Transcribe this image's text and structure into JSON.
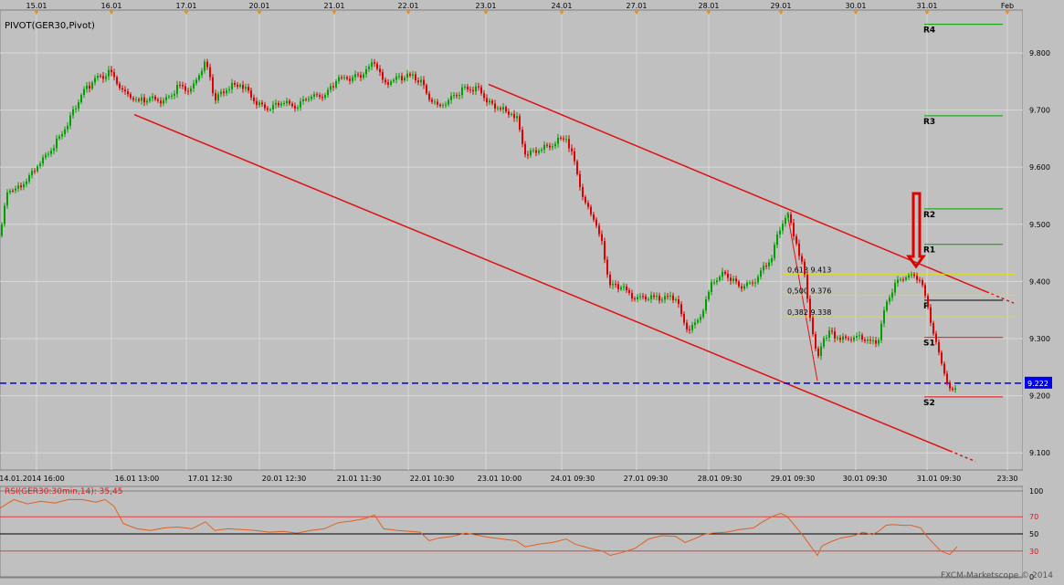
{
  "chart_data": {
    "type": "candlestick",
    "instrument_label": "PIVOT(GER30,Pivot)",
    "top_dates": [
      "15.01",
      "16.01",
      "17.01",
      "20.01",
      "21.01",
      "22.01",
      "23.01",
      "24.01",
      "27.01",
      "28.01",
      "29.01",
      "30.01",
      "31.01",
      "Feb"
    ],
    "bottom_times": [
      "14.01.2014 16:00",
      "16.01 13:00",
      "17.01 12:30",
      "20.01 12:30",
      "21.01 11:30",
      "22.01 10:30",
      "23.01 10:00",
      "24.01 09:30",
      "27.01 09:30",
      "28.01 09:30",
      "29.01 09:30",
      "30.01 09:30",
      "31.01 09:30",
      "23:30"
    ],
    "y_ticks": [
      "9.800",
      "9.700",
      "9.600",
      "9.500",
      "9.400",
      "9.300",
      "9.200",
      "9.100"
    ],
    "ylim": [
      9070,
      9875
    ],
    "price_path": [
      [
        0,
        9480
      ],
      [
        8,
        9560
      ],
      [
        18,
        9560
      ],
      [
        30,
        9580
      ],
      [
        45,
        9610
      ],
      [
        60,
        9640
      ],
      [
        75,
        9680
      ],
      [
        90,
        9730
      ],
      [
        105,
        9755
      ],
      [
        120,
        9765
      ],
      [
        135,
        9730
      ],
      [
        150,
        9715
      ],
      [
        165,
        9720
      ],
      [
        180,
        9715
      ],
      [
        195,
        9740
      ],
      [
        210,
        9735
      ],
      [
        225,
        9785
      ],
      [
        235,
        9720
      ],
      [
        250,
        9740
      ],
      [
        265,
        9745
      ],
      [
        280,
        9715
      ],
      [
        295,
        9700
      ],
      [
        310,
        9715
      ],
      [
        325,
        9705
      ],
      [
        340,
        9725
      ],
      [
        355,
        9725
      ],
      [
        370,
        9755
      ],
      [
        385,
        9755
      ],
      [
        400,
        9765
      ],
      [
        410,
        9785
      ],
      [
        420,
        9745
      ],
      [
        435,
        9755
      ],
      [
        450,
        9760
      ],
      [
        460,
        9750
      ],
      [
        470,
        9720
      ],
      [
        480,
        9705
      ],
      [
        495,
        9720
      ],
      [
        510,
        9740
      ],
      [
        525,
        9735
      ],
      [
        535,
        9715
      ],
      [
        550,
        9700
      ],
      [
        565,
        9690
      ],
      [
        575,
        9625
      ],
      [
        590,
        9630
      ],
      [
        605,
        9640
      ],
      [
        620,
        9655
      ],
      [
        630,
        9600
      ],
      [
        640,
        9540
      ],
      [
        650,
        9510
      ],
      [
        660,
        9460
      ],
      [
        668,
        9390
      ],
      [
        680,
        9390
      ],
      [
        695,
        9370
      ],
      [
        710,
        9370
      ],
      [
        725,
        9370
      ],
      [
        740,
        9370
      ],
      [
        750,
        9320
      ],
      [
        760,
        9320
      ],
      [
        770,
        9350
      ],
      [
        780,
        9400
      ],
      [
        795,
        9415
      ],
      [
        810,
        9390
      ],
      [
        825,
        9400
      ],
      [
        835,
        9420
      ],
      [
        845,
        9445
      ],
      [
        855,
        9500
      ],
      [
        862,
        9520
      ],
      [
        870,
        9480
      ],
      [
        880,
        9420
      ],
      [
        888,
        9330
      ],
      [
        895,
        9260
      ],
      [
        900,
        9300
      ],
      [
        910,
        9310
      ],
      [
        920,
        9300
      ],
      [
        935,
        9300
      ],
      [
        945,
        9300
      ],
      [
        955,
        9290
      ],
      [
        962,
        9300
      ],
      [
        970,
        9360
      ],
      [
        978,
        9390
      ],
      [
        988,
        9405
      ],
      [
        998,
        9410
      ],
      [
        1008,
        9405
      ],
      [
        1015,
        9360
      ],
      [
        1022,
        9310
      ],
      [
        1030,
        9260
      ],
      [
        1040,
        9210
      ],
      [
        1048,
        9210
      ]
    ],
    "channel": {
      "upper": [
        [
          535,
          9745
        ],
        [
          1110,
          9362
        ]
      ],
      "lower": [
        [
          147,
          9692
        ],
        [
          1068,
          9085
        ]
      ]
    },
    "fibonacci": [
      {
        "label": "0,618 9.413",
        "value": 9413
      },
      {
        "label": "0,500 9.376",
        "value": 9376
      },
      {
        "label": "0,382 9.338",
        "value": 9338
      }
    ],
    "pivots": [
      {
        "name": "R4",
        "value": 9850
      },
      {
        "name": "R3",
        "value": 9690
      },
      {
        "name": "R2",
        "value": 9527
      },
      {
        "name": "R1",
        "value": 9465
      },
      {
        "name": "P",
        "value": 9367
      },
      {
        "name": "S1",
        "value": 9302
      },
      {
        "name": "S2",
        "value": 9198
      }
    ],
    "current_price": {
      "label": "9.222",
      "value": 9222
    },
    "rsi": {
      "label": "RSI(GER30:30min,14): 35,45",
      "ticks": [
        "100",
        "70",
        "50",
        "30",
        "0"
      ],
      "values": [
        [
          0,
          80
        ],
        [
          15,
          90
        ],
        [
          30,
          85
        ],
        [
          45,
          88
        ],
        [
          60,
          86
        ],
        [
          75,
          90
        ],
        [
          90,
          90
        ],
        [
          105,
          87
        ],
        [
          115,
          90
        ],
        [
          125,
          82
        ],
        [
          135,
          62
        ],
        [
          150,
          56
        ],
        [
          165,
          54
        ],
        [
          180,
          57
        ],
        [
          195,
          58
        ],
        [
          210,
          56
        ],
        [
          225,
          64
        ],
        [
          235,
          54
        ],
        [
          250,
          56
        ],
        [
          265,
          55
        ],
        [
          280,
          54
        ],
        [
          295,
          52
        ],
        [
          310,
          53
        ],
        [
          325,
          51
        ],
        [
          340,
          54
        ],
        [
          355,
          56
        ],
        [
          370,
          63
        ],
        [
          385,
          65
        ],
        [
          400,
          68
        ],
        [
          410,
          72
        ],
        [
          420,
          56
        ],
        [
          435,
          54
        ],
        [
          450,
          53
        ],
        [
          460,
          52
        ],
        [
          470,
          42
        ],
        [
          480,
          45
        ],
        [
          495,
          47
        ],
        [
          510,
          51
        ],
        [
          525,
          48
        ],
        [
          535,
          46
        ],
        [
          550,
          44
        ],
        [
          565,
          42
        ],
        [
          575,
          35
        ],
        [
          590,
          38
        ],
        [
          605,
          40
        ],
        [
          620,
          44
        ],
        [
          630,
          38
        ],
        [
          640,
          35
        ],
        [
          650,
          32
        ],
        [
          660,
          30
        ],
        [
          668,
          25
        ],
        [
          680,
          28
        ],
        [
          695,
          33
        ],
        [
          710,
          44
        ],
        [
          725,
          48
        ],
        [
          740,
          47
        ],
        [
          750,
          40
        ],
        [
          760,
          44
        ],
        [
          770,
          49
        ],
        [
          780,
          51
        ],
        [
          795,
          52
        ],
        [
          810,
          55
        ],
        [
          825,
          57
        ],
        [
          835,
          64
        ],
        [
          845,
          70
        ],
        [
          855,
          74
        ],
        [
          862,
          70
        ],
        [
          870,
          60
        ],
        [
          880,
          47
        ],
        [
          888,
          35
        ],
        [
          895,
          25
        ],
        [
          900,
          36
        ],
        [
          910,
          41
        ],
        [
          920,
          45
        ],
        [
          935,
          48
        ],
        [
          945,
          52
        ],
        [
          955,
          49
        ],
        [
          962,
          53
        ],
        [
          970,
          60
        ],
        [
          978,
          61
        ],
        [
          988,
          60
        ],
        [
          998,
          60
        ],
        [
          1008,
          57
        ],
        [
          1015,
          47
        ],
        [
          1022,
          39
        ],
        [
          1030,
          30
        ],
        [
          1040,
          26
        ],
        [
          1048,
          35
        ]
      ]
    },
    "watermark": "FXCM-Marketscope © 2014"
  }
}
